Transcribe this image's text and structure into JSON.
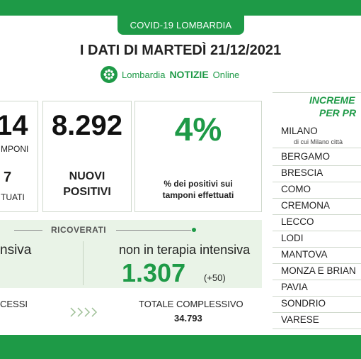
{
  "header": {
    "tag": "COVID-19 LOMBARDIA",
    "title": "I DATI DI MARTEDÌ 21/12/2021"
  },
  "brand": {
    "part1": "Lombardia",
    "part2": "NOTIZIE",
    "part3": "Online",
    "icon": "lombardia-rose-icon"
  },
  "stats": {
    "tamponi_value": "14",
    "tamponi_label": "MPONI",
    "tamponi_sub_value": "7",
    "tamponi_sub_label": "TUATI",
    "positivi_value": "8.292",
    "positivi_label_1": "NUOVI",
    "positivi_label_2": "POSITIVI",
    "percent_value": "4%",
    "percent_note_1": "% dei positivi sui",
    "percent_note_2": "tamponi effettuati"
  },
  "ricoverati": {
    "title": "RICOVERATI",
    "left_label": "nsiva",
    "right_label": "non in terapia intensiva",
    "right_value": "1.307",
    "right_delta": "(+50)"
  },
  "bottom": {
    "decessi_label": "CESSI",
    "totale_label": "TOTALE COMPLESSIVO",
    "totale_value": "34.793"
  },
  "provinces": {
    "heading_1": "INCREME",
    "heading_2": "PER PR",
    "items": [
      {
        "name": "MILANO",
        "note": "di cui Milano città"
      },
      {
        "name": "BERGAMO"
      },
      {
        "name": "BRESCIA"
      },
      {
        "name": "COMO"
      },
      {
        "name": "CREMONA"
      },
      {
        "name": "LECCO"
      },
      {
        "name": "LODI"
      },
      {
        "name": "MANTOVA"
      },
      {
        "name": "MONZA E BRIAN"
      },
      {
        "name": "PAVIA"
      },
      {
        "name": "SONDRIO"
      },
      {
        "name": "VARESE"
      }
    ]
  },
  "colors": {
    "brand_green": "#1e9a47",
    "panel_green": "#e9f3e7"
  }
}
